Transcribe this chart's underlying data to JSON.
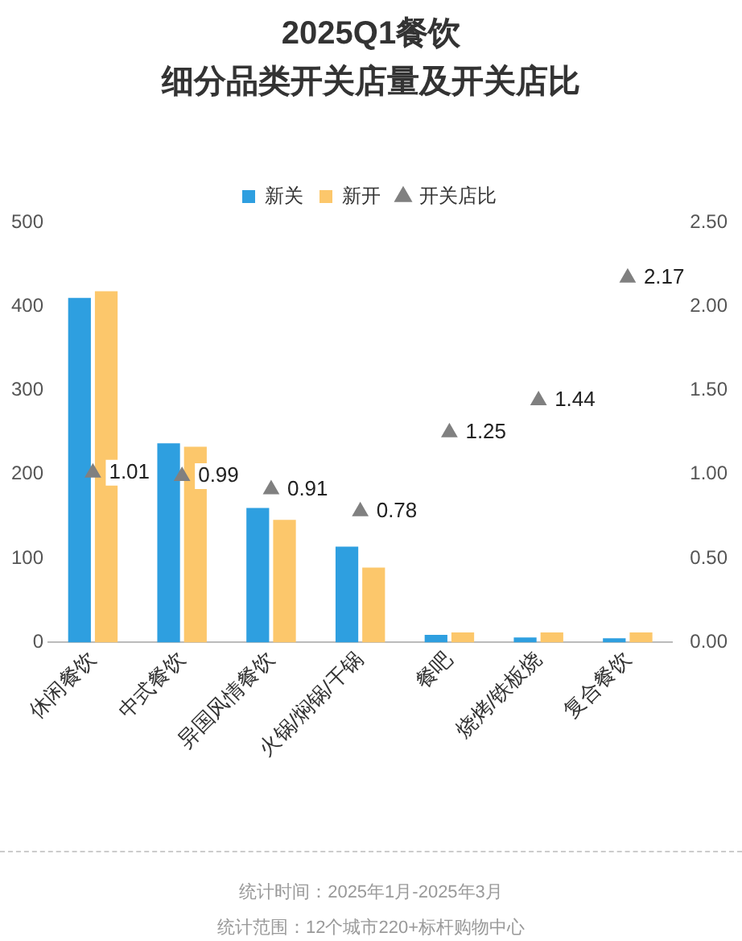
{
  "chart_data": {
    "type": "bar",
    "title": "2025Q1餐饮",
    "subtitle": "细分品类开关店量及开关店比",
    "categories": [
      "休闲餐饮",
      "中式餐饮",
      "异国风情餐饮",
      "火锅/焖锅/干锅",
      "餐吧",
      "烧烤/铁板烧",
      "复合餐饮"
    ],
    "series": [
      {
        "name": "新关",
        "color": "#2e9fe0",
        "values": [
          410,
          237,
          160,
          114,
          9,
          6,
          5
        ]
      },
      {
        "name": "新开",
        "color": "#fcc76b",
        "values": [
          418,
          233,
          146,
          89,
          12,
          12,
          12
        ]
      },
      {
        "name": "开关店比",
        "type": "scatter",
        "axis": "y2",
        "marker": "triangle",
        "color": "#808080",
        "values": [
          1.01,
          0.99,
          0.91,
          0.78,
          1.25,
          1.44,
          2.17
        ],
        "value_labels": [
          "1.01",
          "0.99",
          "0.91",
          "0.78",
          "1.25",
          "1.44",
          "2.17"
        ]
      }
    ],
    "ylim": [
      0,
      500
    ],
    "yticks": [
      0,
      100,
      200,
      300,
      400,
      500
    ],
    "y2lim": [
      0,
      2.5
    ],
    "y2ticks": [
      {
        "value": 0,
        "label": "0.00"
      },
      {
        "value": 0.5,
        "label": "0.50"
      },
      {
        "value": 1,
        "label": "1.00"
      },
      {
        "value": 1.5,
        "label": "1.50"
      },
      {
        "value": 2,
        "label": "2.00"
      },
      {
        "value": 2.5,
        "label": "2.50"
      }
    ],
    "grid": false,
    "legend": "top",
    "annotations": [
      "统计时间：2025年1月-2025年3月",
      "统计范围：12个城市220+标杆购物中心"
    ]
  }
}
